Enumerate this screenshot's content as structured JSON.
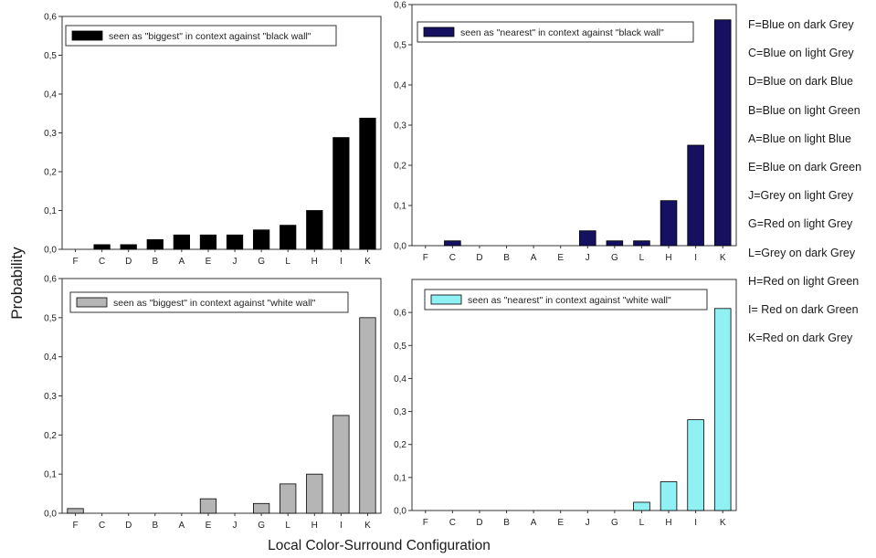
{
  "figure": {
    "ylabel": "Probability",
    "xlabel": "Local Color-Surround Configuration"
  },
  "key": [
    "F=Blue on dark Grey",
    "C=Blue on light Grey",
    "D=Blue on dark Blue",
    "B=Blue on light Green",
    "A=Blue on light Blue",
    "E=Blue on dark Green",
    "J=Grey on light Grey",
    "G=Red on light Grey",
    "L=Grey on dark Grey",
    "H=Red on light Green",
    "I= Red on dark Green",
    "K=Red on dark Grey"
  ],
  "chart_data": [
    {
      "type": "bar",
      "categories": [
        "F",
        "C",
        "D",
        "B",
        "A",
        "E",
        "J",
        "G",
        "L",
        "H",
        "I",
        "K"
      ],
      "series": [
        {
          "name": "seen as \"biggest\" in context against \"black wall\"",
          "values": [
            0,
            0.012,
            0.012,
            0.025,
            0.037,
            0.037,
            0.037,
            0.05,
            0.062,
            0.1,
            0.288,
            0.338
          ]
        }
      ],
      "ylim": [
        0,
        0.6
      ],
      "yticks": [
        "0,0",
        "0,1",
        "0,2",
        "0,3",
        "0,4",
        "0,5",
        "0,6"
      ],
      "color": "#000000",
      "legend": "top-left"
    },
    {
      "type": "bar",
      "categories": [
        "F",
        "C",
        "D",
        "B",
        "A",
        "E",
        "J",
        "G",
        "L",
        "H",
        "I",
        "K"
      ],
      "series": [
        {
          "name": "seen as \"nearest\" in context against \"black wall\"",
          "values": [
            0,
            0.012,
            0,
            0,
            0,
            0,
            0.037,
            0.012,
            0.012,
            0.112,
            0.25,
            0.562
          ]
        }
      ],
      "ylim": [
        0,
        0.6
      ],
      "yticks": [
        "0,0",
        "0,1",
        "0,2",
        "0,3",
        "0,4",
        "0,5",
        "0,6"
      ],
      "color": "#151060",
      "legend": "top-left"
    },
    {
      "type": "bar",
      "categories": [
        "F",
        "C",
        "D",
        "B",
        "A",
        "E",
        "J",
        "G",
        "L",
        "H",
        "I",
        "K"
      ],
      "series": [
        {
          "name": "seen as \"biggest\" in context against \"white wall\"",
          "values": [
            0.012,
            0,
            0,
            0,
            0,
            0.037,
            0,
            0.025,
            0.075,
            0.1,
            0.25,
            0.5
          ]
        }
      ],
      "ylim": [
        0,
        0.6
      ],
      "yticks": [
        "0,0",
        "0,1",
        "0,2",
        "0,3",
        "0,4",
        "0,5",
        "0,6"
      ],
      "color": "#b5b5b5",
      "legend": "top-left"
    },
    {
      "type": "bar",
      "categories": [
        "F",
        "C",
        "D",
        "B",
        "A",
        "E",
        "J",
        "G",
        "L",
        "H",
        "I",
        "K"
      ],
      "series": [
        {
          "name": "seen as \"nearest\" in context against \"white wall\"",
          "values": [
            0,
            0,
            0,
            0,
            0,
            0,
            0,
            0,
            0.025,
            0.087,
            0.275,
            0.612
          ]
        }
      ],
      "ylim": [
        0,
        0.7
      ],
      "yticks": [
        "0,0",
        "0,1",
        "0,2",
        "0,3",
        "0,4",
        "0,5",
        "0,6"
      ],
      "color": "#8ff1f4",
      "legend": "top-left"
    }
  ]
}
